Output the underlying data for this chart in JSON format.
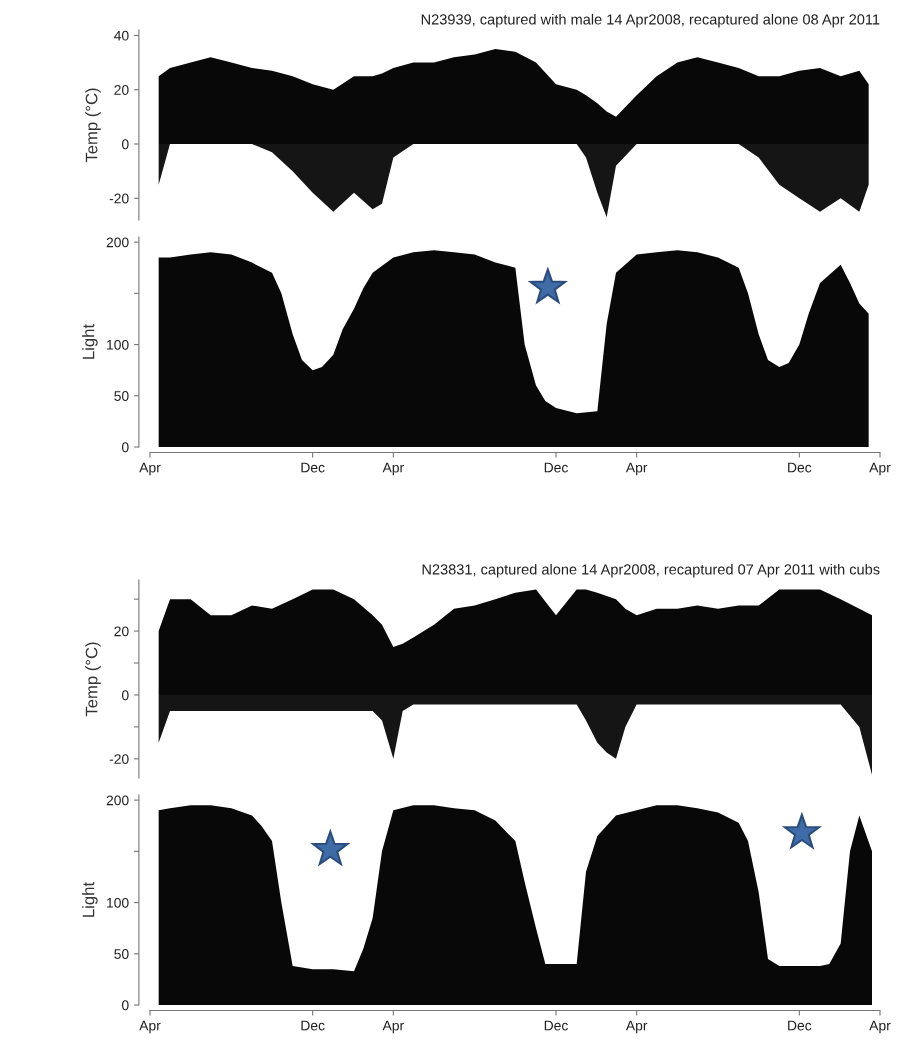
{
  "chart_data": [
    {
      "type": "area",
      "title": "N23939, captured with male 14 Apr2008, recaptured alone 08 Apr 2011",
      "ylabel": "Temp (°C)",
      "tick_labels": "y",
      "xlim": [
        "2008-04-01",
        "2011-04-01"
      ],
      "ylim": [
        -28,
        42
      ],
      "yticks": [
        -20,
        0,
        20,
        40
      ],
      "x": [
        "2008-04-14",
        "2008-05-01",
        "2008-06-01",
        "2008-07-01",
        "2008-08-01",
        "2008-09-01",
        "2008-10-01",
        "2008-11-01",
        "2008-12-01",
        "2009-01-01",
        "2009-02-01",
        "2009-03-01",
        "2009-03-15",
        "2009-04-01",
        "2009-05-01",
        "2009-06-01",
        "2009-07-01",
        "2009-08-01",
        "2009-09-01",
        "2009-10-01",
        "2009-11-01",
        "2009-12-01",
        "2010-01-01",
        "2010-01-15",
        "2010-02-01",
        "2010-02-15",
        "2010-03-01",
        "2010-04-01",
        "2010-05-01",
        "2010-06-01",
        "2010-07-01",
        "2010-08-01",
        "2010-09-01",
        "2010-10-01",
        "2010-11-01",
        "2010-12-01",
        "2011-01-01",
        "2011-02-01",
        "2011-03-01",
        "2011-03-15"
      ],
      "series": [
        {
          "color": "#080808",
          "values": [
            25,
            28,
            30,
            32,
            30,
            28,
            27,
            25,
            22,
            20,
            25,
            25,
            26,
            28,
            30,
            30,
            32,
            33,
            35,
            34,
            30,
            22,
            20,
            18,
            15,
            12,
            10,
            18,
            25,
            30,
            32,
            30,
            28,
            25,
            25,
            27,
            28,
            25,
            27,
            22
          ]
        },
        {
          "color": "#151515",
          "values": [
            -15,
            0,
            0,
            0,
            0,
            0,
            -3,
            -10,
            -18,
            -25,
            -18,
            -24,
            -22,
            -5,
            0,
            0,
            0,
            0,
            0,
            0,
            0,
            0,
            0,
            -5,
            -18,
            -27,
            -8,
            0,
            0,
            0,
            0,
            0,
            0,
            -5,
            -15,
            -20,
            -25,
            -20,
            -25,
            -15
          ]
        }
      ]
    },
    {
      "type": "area",
      "ylabel": "Light",
      "xlim": [
        "2008-04-01",
        "2011-04-01"
      ],
      "ylim": [
        0,
        205
      ],
      "yticks": [
        0,
        50,
        100,
        {
          "value": 150,
          "label": null
        },
        200
      ],
      "xticks": [
        {
          "value": "2008-04-01",
          "label": "Apr"
        },
        {
          "value": "2008-12-01",
          "label": "Dec"
        },
        {
          "value": "2009-04-01",
          "label": "Apr"
        },
        {
          "value": "2009-12-01",
          "label": "Dec"
        },
        {
          "value": "2010-04-01",
          "label": "Apr"
        },
        {
          "value": "2010-12-01",
          "label": "Dec"
        },
        {
          "value": "2011-04-01",
          "label": "Apr"
        }
      ],
      "x": [
        "2008-04-14",
        "2008-05-01",
        "2008-06-01",
        "2008-07-01",
        "2008-08-01",
        "2008-09-01",
        "2008-10-01",
        "2008-10-15",
        "2008-11-01",
        "2008-11-15",
        "2008-12-01",
        "2008-12-15",
        "2009-01-01",
        "2009-01-15",
        "2009-02-01",
        "2009-02-15",
        "2009-03-01",
        "2009-04-01",
        "2009-05-01",
        "2009-06-01",
        "2009-07-01",
        "2009-08-01",
        "2009-09-01",
        "2009-10-01",
        "2009-10-15",
        "2009-11-01",
        "2009-11-15",
        "2009-12-01",
        "2010-01-01",
        "2010-02-01",
        "2010-02-15",
        "2010-03-01",
        "2010-04-01",
        "2010-05-01",
        "2010-06-01",
        "2010-07-01",
        "2010-08-01",
        "2010-09-01",
        "2010-09-15",
        "2010-10-01",
        "2010-10-15",
        "2010-11-01",
        "2010-11-15",
        "2010-12-01",
        "2010-12-15",
        "2011-01-01",
        "2011-02-01",
        "2011-02-15",
        "2011-03-01",
        "2011-03-15"
      ],
      "series": [
        {
          "color": "#080808",
          "values": [
            185,
            185,
            188,
            190,
            188,
            180,
            170,
            150,
            110,
            85,
            75,
            78,
            90,
            115,
            135,
            155,
            170,
            185,
            190,
            192,
            190,
            188,
            180,
            175,
            100,
            60,
            45,
            38,
            33,
            35,
            120,
            170,
            188,
            190,
            192,
            190,
            185,
            175,
            150,
            110,
            85,
            78,
            82,
            100,
            130,
            160,
            178,
            160,
            140,
            130
          ]
        }
      ]
    },
    {
      "type": "area",
      "title": "N23831, captured alone 14 Apr2008, recaptured 07 Apr 2011 with cubs",
      "ylabel": "Temp (°C)",
      "tick_labels": "y",
      "xlim": [
        "2008-04-01",
        "2011-04-01"
      ],
      "ylim": [
        -26,
        36
      ],
      "yticks": [
        {
          "value": -20,
          "label": "-20"
        },
        {
          "value": -10,
          "label": null
        },
        0,
        {
          "value": 10,
          "label": null
        },
        20,
        {
          "value": 30,
          "label": null
        }
      ],
      "x": [
        "2008-04-14",
        "2008-05-01",
        "2008-06-01",
        "2008-07-01",
        "2008-08-01",
        "2008-09-01",
        "2008-10-01",
        "2008-11-01",
        "2008-12-01",
        "2009-01-01",
        "2009-02-01",
        "2009-03-01",
        "2009-03-15",
        "2009-04-01",
        "2009-04-15",
        "2009-05-01",
        "2009-06-01",
        "2009-07-01",
        "2009-08-01",
        "2009-09-01",
        "2009-10-01",
        "2009-11-01",
        "2009-12-01",
        "2010-01-01",
        "2010-01-15",
        "2010-02-01",
        "2010-02-15",
        "2010-03-01",
        "2010-03-15",
        "2010-04-01",
        "2010-05-01",
        "2010-06-01",
        "2010-07-01",
        "2010-08-01",
        "2010-09-01",
        "2010-10-01",
        "2010-11-01",
        "2010-12-01",
        "2011-01-01",
        "2011-02-01",
        "2011-03-01",
        "2011-03-20"
      ],
      "series": [
        {
          "color": "#080808",
          "values": [
            20,
            30,
            30,
            25,
            25,
            28,
            27,
            30,
            33,
            33,
            30,
            25,
            22,
            15,
            16,
            18,
            22,
            27,
            28,
            30,
            32,
            33,
            25,
            33,
            33,
            32,
            31,
            30,
            27,
            25,
            27,
            27,
            28,
            27,
            28,
            28,
            33,
            33,
            33,
            30,
            27,
            25
          ]
        },
        {
          "color": "#151515",
          "values": [
            -15,
            -5,
            -5,
            -5,
            -5,
            -5,
            -5,
            -5,
            -5,
            -5,
            -5,
            -5,
            -8,
            -20,
            -5,
            -3,
            -3,
            -3,
            -3,
            -3,
            -3,
            -3,
            -3,
            -3,
            -8,
            -15,
            -18,
            -20,
            -10,
            -3,
            -3,
            -3,
            -3,
            -3,
            -3,
            -3,
            -3,
            -3,
            -3,
            -3,
            -10,
            -25
          ]
        }
      ]
    },
    {
      "type": "area",
      "ylabel": "Light",
      "xlim": [
        "2008-04-01",
        "2011-04-01"
      ],
      "ylim": [
        0,
        205
      ],
      "yticks": [
        0,
        50,
        100,
        {
          "value": 150,
          "label": null
        },
        200
      ],
      "xticks": [
        {
          "value": "2008-04-01",
          "label": "Apr"
        },
        {
          "value": "2008-12-01",
          "label": "Dec"
        },
        {
          "value": "2009-04-01",
          "label": "Apr"
        },
        {
          "value": "2009-12-01",
          "label": "Dec"
        },
        {
          "value": "2010-04-01",
          "label": "Apr"
        },
        {
          "value": "2010-12-01",
          "label": "Dec"
        },
        {
          "value": "2011-04-01",
          "label": "Apr"
        }
      ],
      "x": [
        "2008-04-14",
        "2008-05-01",
        "2008-06-01",
        "2008-07-01",
        "2008-08-01",
        "2008-09-01",
        "2008-09-15",
        "2008-10-01",
        "2008-10-15",
        "2008-11-01",
        "2008-12-01",
        "2009-01-01",
        "2009-02-01",
        "2009-02-15",
        "2009-03-01",
        "2009-03-15",
        "2009-04-01",
        "2009-05-01",
        "2009-06-01",
        "2009-07-01",
        "2009-08-01",
        "2009-09-01",
        "2009-10-01",
        "2009-10-15",
        "2009-11-01",
        "2009-11-15",
        "2009-12-01",
        "2010-01-01",
        "2010-01-15",
        "2010-02-01",
        "2010-03-01",
        "2010-04-01",
        "2010-05-01",
        "2010-06-01",
        "2010-07-01",
        "2010-08-01",
        "2010-09-01",
        "2010-09-15",
        "2010-10-01",
        "2010-10-15",
        "2010-11-01",
        "2010-12-01",
        "2011-01-01",
        "2011-01-15",
        "2011-02-01",
        "2011-02-15",
        "2011-03-01",
        "2011-03-20"
      ],
      "series": [
        {
          "color": "#080808",
          "values": [
            190,
            192,
            195,
            195,
            192,
            185,
            175,
            160,
            100,
            38,
            35,
            35,
            33,
            55,
            85,
            150,
            190,
            195,
            195,
            192,
            190,
            180,
            160,
            120,
            75,
            40,
            40,
            40,
            130,
            165,
            185,
            190,
            195,
            195,
            192,
            188,
            178,
            160,
            110,
            45,
            38,
            38,
            38,
            40,
            60,
            150,
            185,
            150
          ]
        }
      ]
    }
  ]
}
